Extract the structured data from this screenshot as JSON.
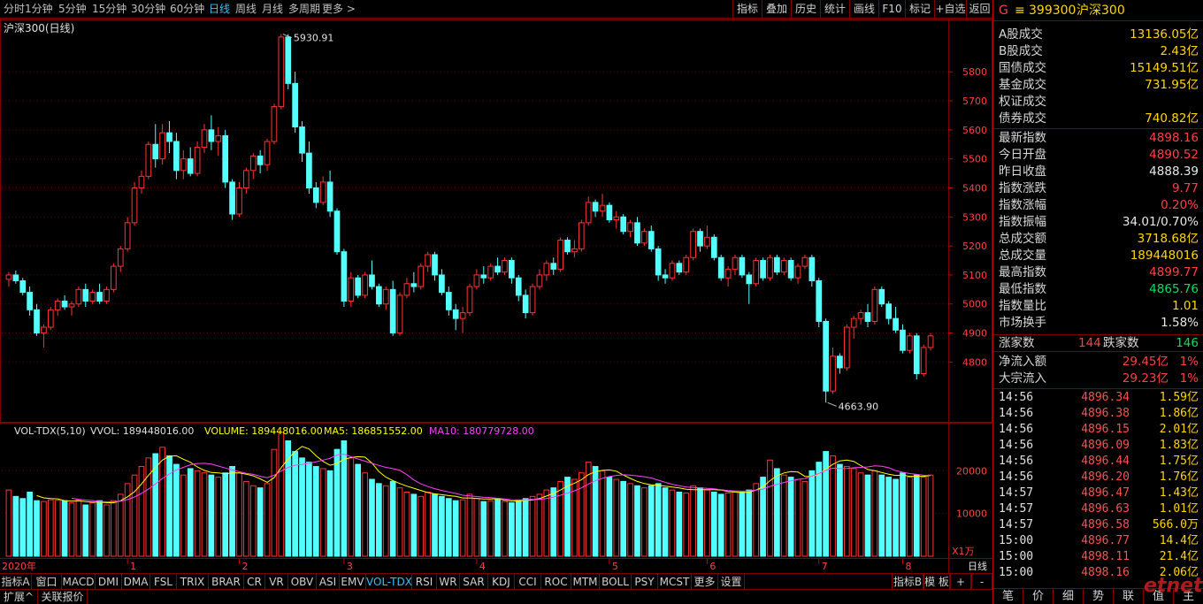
{
  "toolbar": {
    "timeframes": [
      "分时",
      "1分钟",
      "5分钟",
      "15分钟",
      "30分钟",
      "60分钟",
      "日线",
      "周线",
      "月线",
      "多周期",
      "更多 >"
    ],
    "active_timeframe": "日线",
    "tools": [
      "指标",
      "叠加",
      "历史",
      "统计",
      "画线",
      "F10",
      "标记",
      "+自选",
      "返回"
    ]
  },
  "chart": {
    "title": "沪深300(日线)",
    "high_label": "5930.91",
    "low_label": "4663.90",
    "price_ticks": [
      "5800",
      "5700",
      "5600",
      "5500",
      "5400",
      "5300",
      "5200",
      "5100",
      "5000",
      "4900",
      "4800"
    ],
    "volume_legend": {
      "name": "VOL-TDX(5,10)",
      "vvol": "VVOL: 189448016.00",
      "volume": "VOLUME: 189448016.00",
      "ma5": "MA5: 186851552.00",
      "ma10": "MA10: 180779728.00"
    },
    "volume_ticks": [
      "20000",
      "10000"
    ],
    "volume_unit": "X1万",
    "year_label": "2020年",
    "month_labels": [
      "1",
      "2",
      "3",
      "4",
      "5",
      "6",
      "7",
      "8"
    ],
    "period_label": "日线"
  },
  "chart_data": {
    "type": "candlestick",
    "ylim": [
      4600,
      5950
    ],
    "volume_ylim": [
      0,
      30000
    ],
    "candles": [
      [
        5085,
        5110,
        5060,
        5100,
        15500
      ],
      [
        5100,
        5115,
        5070,
        5080,
        14000
      ],
      [
        5080,
        5090,
        5030,
        5040,
        13500
      ],
      [
        5040,
        5060,
        4960,
        4980,
        15000
      ],
      [
        4980,
        5000,
        4890,
        4900,
        13000
      ],
      [
        4900,
        4930,
        4850,
        4920,
        12800
      ],
      [
        4920,
        4990,
        4910,
        4980,
        13200
      ],
      [
        4980,
        5020,
        4960,
        5010,
        13100
      ],
      [
        5010,
        5030,
        4980,
        4990,
        13000
      ],
      [
        4990,
        5010,
        4960,
        5000,
        12500
      ],
      [
        5000,
        5060,
        4990,
        5050,
        13200
      ],
      [
        5050,
        5070,
        4990,
        5010,
        12000
      ],
      [
        5010,
        5050,
        5000,
        5040,
        12500
      ],
      [
        5040,
        5070,
        5000,
        5010,
        13000
      ],
      [
        5010,
        5060,
        5000,
        5050,
        12000
      ],
      [
        5050,
        5140,
        5040,
        5130,
        13000
      ],
      [
        5130,
        5200,
        5110,
        5190,
        14500
      ],
      [
        5190,
        5300,
        5180,
        5280,
        17000
      ],
      [
        5280,
        5420,
        5270,
        5400,
        19000
      ],
      [
        5400,
        5460,
        5380,
        5440,
        21000
      ],
      [
        5440,
        5560,
        5430,
        5550,
        23000
      ],
      [
        5550,
        5620,
        5470,
        5500,
        24000
      ],
      [
        5500,
        5620,
        5480,
        5590,
        25500
      ],
      [
        5590,
        5630,
        5520,
        5560,
        23500
      ],
      [
        5560,
        5590,
        5430,
        5460,
        21500
      ],
      [
        5460,
        5530,
        5430,
        5500,
        19000
      ],
      [
        5500,
        5540,
        5440,
        5450,
        20500
      ],
      [
        5450,
        5560,
        5440,
        5540,
        20000
      ],
      [
        5540,
        5620,
        5520,
        5600,
        19500
      ],
      [
        5600,
        5650,
        5530,
        5560,
        19000
      ],
      [
        5560,
        5610,
        5510,
        5580,
        18500
      ],
      [
        5580,
        5600,
        5400,
        5420,
        19500
      ],
      [
        5420,
        5430,
        5290,
        5310,
        21000
      ],
      [
        5310,
        5420,
        5300,
        5400,
        19500
      ],
      [
        5400,
        5470,
        5380,
        5460,
        17500
      ],
      [
        5460,
        5520,
        5430,
        5510,
        16500
      ],
      [
        5510,
        5530,
        5450,
        5480,
        16000
      ],
      [
        5480,
        5570,
        5460,
        5560,
        17000
      ],
      [
        5560,
        5690,
        5550,
        5680,
        25000
      ],
      [
        5680,
        5930,
        5670,
        5920,
        29000
      ],
      [
        5920,
        5930,
        5740,
        5760,
        27000
      ],
      [
        5760,
        5800,
        5590,
        5610,
        24500
      ],
      [
        5610,
        5630,
        5490,
        5520,
        23000
      ],
      [
        5520,
        5560,
        5380,
        5400,
        22000
      ],
      [
        5400,
        5420,
        5330,
        5350,
        21000
      ],
      [
        5350,
        5440,
        5340,
        5420,
        20500
      ],
      [
        5420,
        5460,
        5300,
        5320,
        20000
      ],
      [
        5320,
        5330,
        5170,
        5180,
        25000
      ],
      [
        5180,
        5190,
        4990,
        5010,
        27000
      ],
      [
        5010,
        5110,
        4990,
        5090,
        23000
      ],
      [
        5090,
        5100,
        5020,
        5030,
        21500
      ],
      [
        5030,
        5110,
        5020,
        5100,
        19500
      ],
      [
        5100,
        5150,
        5050,
        5060,
        18000
      ],
      [
        5060,
        5070,
        4990,
        5000,
        17000
      ],
      [
        5000,
        5060,
        4980,
        5050,
        16500
      ],
      [
        5050,
        5080,
        4890,
        4900,
        17500
      ],
      [
        4900,
        5040,
        4890,
        5030,
        16000
      ],
      [
        5030,
        5090,
        5020,
        5070,
        15000
      ],
      [
        5070,
        5110,
        5040,
        5060,
        14500
      ],
      [
        5060,
        5140,
        5050,
        5130,
        14000
      ],
      [
        5130,
        5180,
        5110,
        5170,
        15000
      ],
      [
        5170,
        5180,
        5080,
        5100,
        14500
      ],
      [
        5100,
        5120,
        5030,
        5040,
        14000
      ],
      [
        5040,
        5060,
        4960,
        4980,
        13500
      ],
      [
        4980,
        5000,
        4910,
        4950,
        13000
      ],
      [
        4950,
        4990,
        4900,
        4970,
        13200
      ],
      [
        4970,
        5070,
        4960,
        5060,
        14500
      ],
      [
        5060,
        5120,
        5050,
        5100,
        13500
      ],
      [
        5100,
        5130,
        5070,
        5090,
        12800
      ],
      [
        5090,
        5140,
        5080,
        5130,
        13000
      ],
      [
        5130,
        5160,
        5100,
        5110,
        13500
      ],
      [
        5110,
        5160,
        5100,
        5150,
        12800
      ],
      [
        5150,
        5160,
        5070,
        5090,
        12500
      ],
      [
        5090,
        5100,
        5010,
        5030,
        13000
      ],
      [
        5030,
        5050,
        4950,
        4970,
        13500
      ],
      [
        4970,
        5070,
        4960,
        5060,
        14000
      ],
      [
        5060,
        5120,
        5050,
        5100,
        14500
      ],
      [
        5100,
        5150,
        5080,
        5140,
        15500
      ],
      [
        5140,
        5160,
        5100,
        5120,
        16000
      ],
      [
        5120,
        5230,
        5110,
        5220,
        17500
      ],
      [
        5220,
        5230,
        5170,
        5180,
        18500
      ],
      [
        5180,
        5220,
        5160,
        5190,
        18000
      ],
      [
        5190,
        5290,
        5180,
        5280,
        19500
      ],
      [
        5280,
        5370,
        5270,
        5350,
        22000
      ],
      [
        5350,
        5360,
        5300,
        5320,
        21000
      ],
      [
        5320,
        5380,
        5300,
        5340,
        20000
      ],
      [
        5340,
        5350,
        5280,
        5290,
        18500
      ],
      [
        5290,
        5320,
        5260,
        5300,
        18000
      ],
      [
        5300,
        5310,
        5240,
        5250,
        17500
      ],
      [
        5250,
        5290,
        5230,
        5280,
        17000
      ],
      [
        5280,
        5300,
        5200,
        5210,
        16500
      ],
      [
        5210,
        5260,
        5200,
        5250,
        16000
      ],
      [
        5250,
        5270,
        5180,
        5190,
        16500
      ],
      [
        5190,
        5200,
        5080,
        5100,
        17000
      ],
      [
        5100,
        5120,
        5070,
        5090,
        16000
      ],
      [
        5090,
        5150,
        5080,
        5140,
        15500
      ],
      [
        5140,
        5150,
        5100,
        5110,
        15000
      ],
      [
        5110,
        5170,
        5100,
        5160,
        14800
      ],
      [
        5160,
        5260,
        5150,
        5250,
        16500
      ],
      [
        5250,
        5260,
        5180,
        5200,
        16000
      ],
      [
        5200,
        5270,
        5190,
        5230,
        15500
      ],
      [
        5230,
        5240,
        5150,
        5160,
        15000
      ],
      [
        5160,
        5170,
        5080,
        5090,
        14500
      ],
      [
        5090,
        5130,
        5060,
        5120,
        14800
      ],
      [
        5120,
        5170,
        5100,
        5160,
        15200
      ],
      [
        5160,
        5170,
        5090,
        5100,
        15000
      ],
      [
        5100,
        5110,
        5000,
        5070,
        15500
      ],
      [
        5070,
        5160,
        5060,
        5150,
        17000
      ],
      [
        5150,
        5160,
        5080,
        5090,
        18500
      ],
      [
        5090,
        5170,
        5080,
        5160,
        22500
      ],
      [
        5160,
        5170,
        5100,
        5110,
        20500
      ],
      [
        5110,
        5160,
        5100,
        5150,
        19000
      ],
      [
        5150,
        5160,
        5080,
        5090,
        18500
      ],
      [
        5090,
        5140,
        5070,
        5130,
        18000
      ],
      [
        5130,
        5170,
        5120,
        5160,
        17500
      ],
      [
        5160,
        5170,
        5060,
        5080,
        20000
      ],
      [
        5080,
        5090,
        4920,
        4940,
        22000
      ],
      [
        4940,
        4950,
        4660,
        4700,
        24500
      ],
      [
        4700,
        4850,
        4690,
        4820,
        23500
      ],
      [
        4820,
        4830,
        4760,
        4780,
        21500
      ],
      [
        4780,
        4930,
        4770,
        4920,
        21000
      ],
      [
        4920,
        4960,
        4880,
        4950,
        20500
      ],
      [
        4950,
        4980,
        4930,
        4970,
        19500
      ],
      [
        4970,
        5000,
        4920,
        4940,
        19000
      ],
      [
        4940,
        5060,
        4930,
        5050,
        20000
      ],
      [
        5050,
        5060,
        4990,
        5000,
        19000
      ],
      [
        5000,
        5010,
        4930,
        4950,
        18500
      ],
      [
        4950,
        4990,
        4900,
        4910,
        18000
      ],
      [
        4910,
        4930,
        4830,
        4840,
        19500
      ],
      [
        4840,
        4900,
        4830,
        4890,
        18500
      ],
      [
        4890,
        4900,
        4740,
        4760,
        19000
      ],
      [
        4760,
        4860,
        4750,
        4850,
        18500
      ],
      [
        4850,
        4900,
        4840,
        4890,
        19000
      ]
    ]
  },
  "quote": {
    "flag": "G",
    "menu_icon": "≡",
    "code": "399300",
    "name": "沪深300",
    "stats": [
      {
        "label": "A股成交",
        "value": "13136.05亿",
        "color": "#ffd700"
      },
      {
        "label": "B股成交",
        "value": "2.43亿",
        "color": "#ffd700"
      },
      {
        "label": "国债成交",
        "value": "15149.51亿",
        "color": "#ffd700"
      },
      {
        "label": "基金成交",
        "value": "731.95亿",
        "color": "#ffd700"
      },
      {
        "label": "权证成交",
        "value": "",
        "color": "#ffd700"
      },
      {
        "label": "债券成交",
        "value": "740.82亿",
        "color": "#ffd700"
      }
    ],
    "index": [
      {
        "label": "最新指数",
        "value": "4898.16",
        "color": "#ff4040"
      },
      {
        "label": "今日开盘",
        "value": "4890.52",
        "color": "#ff4040"
      },
      {
        "label": "昨日收盘",
        "value": "4888.39",
        "color": "#e8e8e8"
      },
      {
        "label": "指数涨跌",
        "value": "9.77",
        "color": "#ff4040"
      },
      {
        "label": "指数涨幅",
        "value": "0.20%",
        "color": "#ff4040"
      },
      {
        "label": "指数振幅",
        "value": "34.01/0.70%",
        "color": "#e8e8e8"
      },
      {
        "label": "总成交额",
        "value": "3718.68亿",
        "color": "#ffd700"
      },
      {
        "label": "总成交量",
        "value": "189448016",
        "color": "#ffd700"
      },
      {
        "label": "最高指数",
        "value": "4899.77",
        "color": "#ff4040"
      },
      {
        "label": "最低指数",
        "value": "4865.76",
        "color": "#00e060"
      },
      {
        "label": "指数量比",
        "value": "1.01",
        "color": "#ffd700"
      },
      {
        "label": "市场换手",
        "value": "1.58%",
        "color": "#e8e8e8"
      }
    ],
    "breadth": {
      "up_label": "涨家数",
      "up_value": "144",
      "down_label": "跌家数",
      "down_value": "146"
    },
    "flows": [
      {
        "label": "净流入额",
        "value": "29.45亿",
        "pct": "1%"
      },
      {
        "label": "大宗流入",
        "value": "29.23亿",
        "pct": "1%"
      }
    ],
    "ticks": [
      {
        "time": "14:56",
        "price": "4896.34",
        "vol": "1.59亿"
      },
      {
        "time": "14:56",
        "price": "4896.38",
        "vol": "1.86亿"
      },
      {
        "time": "14:56",
        "price": "4896.15",
        "vol": "2.01亿"
      },
      {
        "time": "14:56",
        "price": "4896.09",
        "vol": "1.83亿"
      },
      {
        "time": "14:56",
        "price": "4896.44",
        "vol": "1.75亿"
      },
      {
        "time": "14:56",
        "price": "4896.20",
        "vol": "1.76亿"
      },
      {
        "time": "14:57",
        "price": "4896.47",
        "vol": "1.43亿"
      },
      {
        "time": "14:57",
        "price": "4896.63",
        "vol": "1.01亿"
      },
      {
        "time": "14:57",
        "price": "4896.58",
        "vol": "566.0万"
      },
      {
        "time": "15:00",
        "price": "4896.77",
        "vol": "14.4亿"
      },
      {
        "time": "15:00",
        "price": "4898.11",
        "vol": "21.4亿"
      },
      {
        "time": "15:00",
        "price": "4898.16",
        "vol": "2.06亿"
      }
    ],
    "bottom_tabs": [
      "笔",
      "价",
      "细",
      "势",
      "联",
      "值",
      "主"
    ]
  },
  "indicator_tabs": [
    "指标A",
    "窗口",
    "MACD",
    "DMI",
    "DMA",
    "FSL",
    "TRIX",
    "BRAR",
    "CR",
    "VR",
    "OBV",
    "ASI",
    "EMV",
    "VOL-TDX",
    "RSI",
    "WR",
    "SAR",
    "KDJ",
    "CCI",
    "ROC",
    "MTM",
    "BOLL",
    "PSY",
    "MCST",
    "更多",
    "设置"
  ],
  "active_indicator": "VOL-TDX",
  "right_tabs": [
    "指标B",
    "模 板",
    "+",
    "-"
  ],
  "bottom_tabs": [
    "扩展^",
    "关联报价"
  ],
  "watermark": "etnet"
}
